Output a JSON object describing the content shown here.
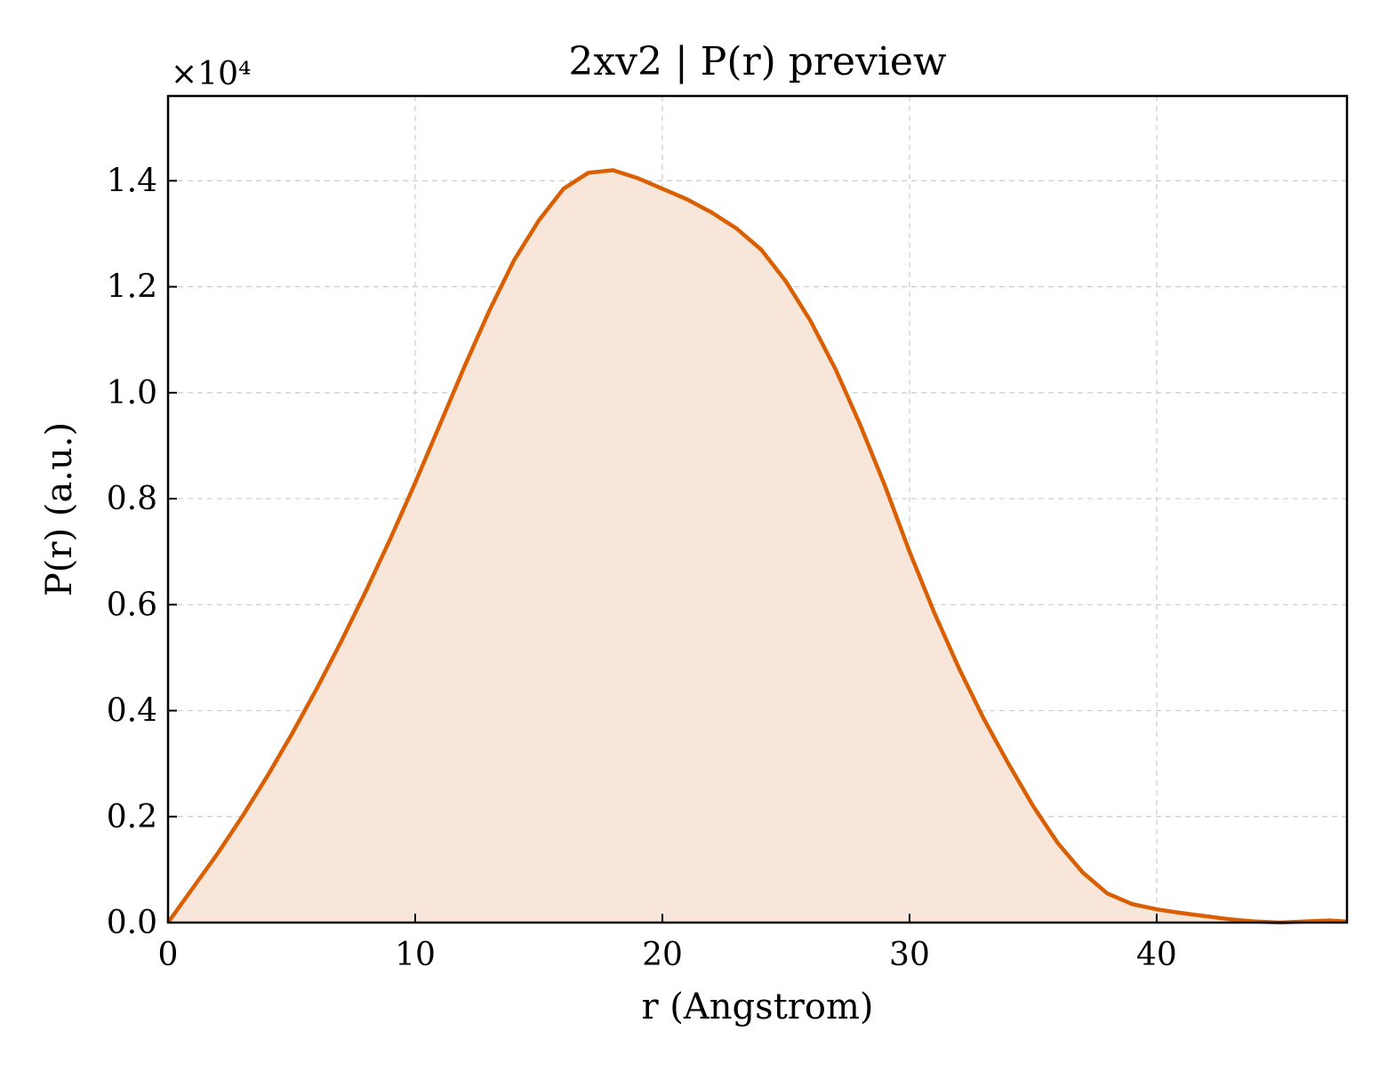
{
  "chart_data": {
    "type": "area",
    "title": "2xv2 | P(r) preview",
    "xlabel": "r (Angstrom)",
    "ylabel": "P(r) (a.u.)",
    "y_multiplier": "×10⁴",
    "xlim": [
      0,
      47.7
    ],
    "ylim": [
      0,
      1.56
    ],
    "x_ticks": [
      0,
      10,
      20,
      30,
      40
    ],
    "x_tick_labels": [
      "0",
      "10",
      "20",
      "30",
      "40"
    ],
    "y_ticks": [
      0.0,
      0.2,
      0.4,
      0.6,
      0.8,
      1.0,
      1.2,
      1.4
    ],
    "y_tick_labels": [
      "0.0",
      "0.2",
      "0.4",
      "0.6",
      "0.8",
      "1.0",
      "1.2",
      "1.4"
    ],
    "grid": true,
    "legend": "none",
    "colors": {
      "line": "#d95f02",
      "fill": "#f8e6da",
      "grid": "#cccccc",
      "axes": "#000000"
    },
    "series": [
      {
        "x": [
          0,
          1,
          2,
          3,
          4,
          5,
          6,
          7,
          8,
          9,
          10,
          11,
          12,
          13,
          14,
          15,
          16,
          17,
          18,
          19,
          20,
          21,
          22,
          23,
          24,
          25,
          26,
          27,
          28,
          29,
          30,
          31,
          32,
          33,
          34,
          35,
          36,
          37,
          38,
          39,
          40,
          41,
          42,
          43,
          44,
          45,
          46,
          47,
          47.7
        ],
        "y": [
          0.0,
          0.065,
          0.13,
          0.2,
          0.275,
          0.355,
          0.44,
          0.53,
          0.625,
          0.725,
          0.83,
          0.94,
          1.05,
          1.155,
          1.25,
          1.325,
          1.385,
          1.415,
          1.42,
          1.405,
          1.385,
          1.365,
          1.34,
          1.31,
          1.27,
          1.21,
          1.135,
          1.045,
          0.94,
          0.825,
          0.7,
          0.585,
          0.48,
          0.385,
          0.3,
          0.22,
          0.15,
          0.095,
          0.055,
          0.035,
          0.025,
          0.018,
          0.012,
          0.006,
          0.002,
          0.0,
          0.002,
          0.004,
          0.002
        ]
      }
    ]
  }
}
